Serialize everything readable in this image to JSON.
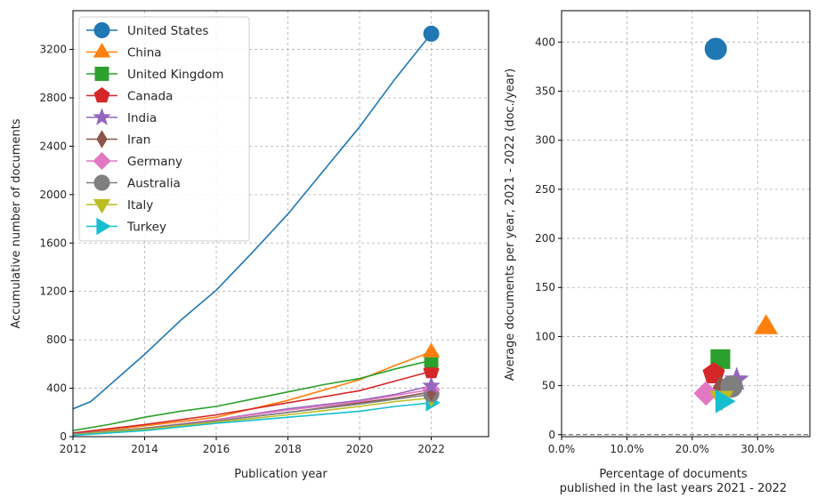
{
  "chart_data": [
    {
      "type": "line",
      "xlabel": "Publication year",
      "ylabel": "Accumulative number of documents",
      "xlim": [
        2012,
        2023.6
      ],
      "ylim": [
        0,
        3520
      ],
      "xticks": [
        2012,
        2014,
        2016,
        2018,
        2020,
        2022
      ],
      "yticks": [
        0,
        400,
        800,
        1200,
        1600,
        2000,
        2400,
        2800,
        3200
      ],
      "grid": true,
      "legend_position": "top-left",
      "series": [
        {
          "name": "United States",
          "color": "#1f77b4",
          "marker": "circle",
          "x": [
            2012,
            2012.5,
            2013,
            2014,
            2015,
            2016,
            2017,
            2018,
            2019,
            2020,
            2021,
            2022
          ],
          "y": [
            230,
            290,
            420,
            680,
            960,
            1210,
            1520,
            1840,
            2200,
            2560,
            2960,
            3330
          ]
        },
        {
          "name": "China",
          "color": "#ff7f0e",
          "marker": "triangle",
          "x": [
            2012,
            2014,
            2016,
            2018,
            2020,
            2021,
            2022
          ],
          "y": [
            20,
            90,
            160,
            300,
            470,
            590,
            700
          ]
        },
        {
          "name": "United Kingdom",
          "color": "#2ca02c",
          "marker": "square",
          "x": [
            2012,
            2013,
            2014,
            2015,
            2016,
            2017,
            2018,
            2019,
            2020,
            2021,
            2022
          ],
          "y": [
            50,
            100,
            160,
            210,
            250,
            310,
            370,
            430,
            480,
            560,
            630
          ]
        },
        {
          "name": "Canada",
          "color": "#d62728",
          "marker": "pentagon",
          "x": [
            2012,
            2014,
            2016,
            2018,
            2020,
            2021,
            2022
          ],
          "y": [
            30,
            100,
            180,
            280,
            380,
            460,
            540
          ]
        },
        {
          "name": "India",
          "color": "#9467bd",
          "marker": "star",
          "x": [
            2012,
            2014,
            2016,
            2018,
            2020,
            2021,
            2022
          ],
          "y": [
            20,
            70,
            140,
            230,
            300,
            350,
            420
          ]
        },
        {
          "name": "Iran",
          "color": "#8c564b",
          "marker": "thin_diamond",
          "x": [
            2012,
            2014,
            2016,
            2018,
            2020,
            2021,
            2022
          ],
          "y": [
            15,
            60,
            130,
            200,
            280,
            320,
            370
          ]
        },
        {
          "name": "Germany",
          "color": "#e377c2",
          "marker": "diamond",
          "x": [
            2012,
            2014,
            2016,
            2018,
            2020,
            2021,
            2022
          ],
          "y": [
            20,
            70,
            140,
            220,
            290,
            340,
            390
          ]
        },
        {
          "name": "Australia",
          "color": "#7f7f7f",
          "marker": "circle",
          "x": [
            2012,
            2014,
            2016,
            2018,
            2020,
            2021,
            2022
          ],
          "y": [
            20,
            70,
            130,
            200,
            270,
            310,
            350
          ]
        },
        {
          "name": "Italy",
          "color": "#bcbd22",
          "marker": "triangle_down",
          "x": [
            2012,
            2014,
            2016,
            2018,
            2020,
            2021,
            2022
          ],
          "y": [
            15,
            60,
            120,
            180,
            250,
            290,
            320
          ]
        },
        {
          "name": "Turkey",
          "color": "#17becf",
          "marker": "triangle_right",
          "x": [
            2012,
            2014,
            2016,
            2018,
            2020,
            2021,
            2022
          ],
          "y": [
            10,
            50,
            110,
            160,
            210,
            250,
            280
          ]
        }
      ]
    },
    {
      "type": "scatter",
      "xlabel": "Percentage of documents\npublished in the last years 2021 - 2022",
      "ylabel": "Average documents per year, 2021 - 2022 (doc./year)",
      "xlim": [
        0,
        0.38
      ],
      "ylim": [
        -2,
        432
      ],
      "xticks": [
        0,
        0.1,
        0.2,
        0.3
      ],
      "xticklabels": [
        "0.0%",
        "10.0%",
        "20.0%",
        "30.0%"
      ],
      "yticks": [
        0,
        50,
        100,
        150,
        200,
        250,
        300,
        350,
        400
      ],
      "grid": true,
      "points": [
        {
          "name": "United States",
          "color": "#1f77b4",
          "marker": "circle",
          "x": 0.236,
          "y": 393
        },
        {
          "name": "China",
          "color": "#ff7f0e",
          "marker": "triangle",
          "x": 0.313,
          "y": 110
        },
        {
          "name": "United Kingdom",
          "color": "#2ca02c",
          "marker": "square",
          "x": 0.243,
          "y": 77
        },
        {
          "name": "Canada",
          "color": "#d62728",
          "marker": "pentagon",
          "x": 0.233,
          "y": 62
        },
        {
          "name": "India",
          "color": "#9467bd",
          "marker": "star",
          "x": 0.268,
          "y": 56
        },
        {
          "name": "Iran",
          "color": "#8c564b",
          "marker": "thin_diamond",
          "x": 0.243,
          "y": 48
        },
        {
          "name": "Germany",
          "color": "#e377c2",
          "marker": "diamond",
          "x": 0.221,
          "y": 42
        },
        {
          "name": "Australia",
          "color": "#7f7f7f",
          "marker": "circle",
          "x": 0.26,
          "y": 49
        },
        {
          "name": "Italy",
          "color": "#bcbd22",
          "marker": "triangle_down",
          "x": 0.245,
          "y": 37
        },
        {
          "name": "Turkey",
          "color": "#17becf",
          "marker": "triangle_right",
          "x": 0.247,
          "y": 34
        }
      ]
    }
  ]
}
